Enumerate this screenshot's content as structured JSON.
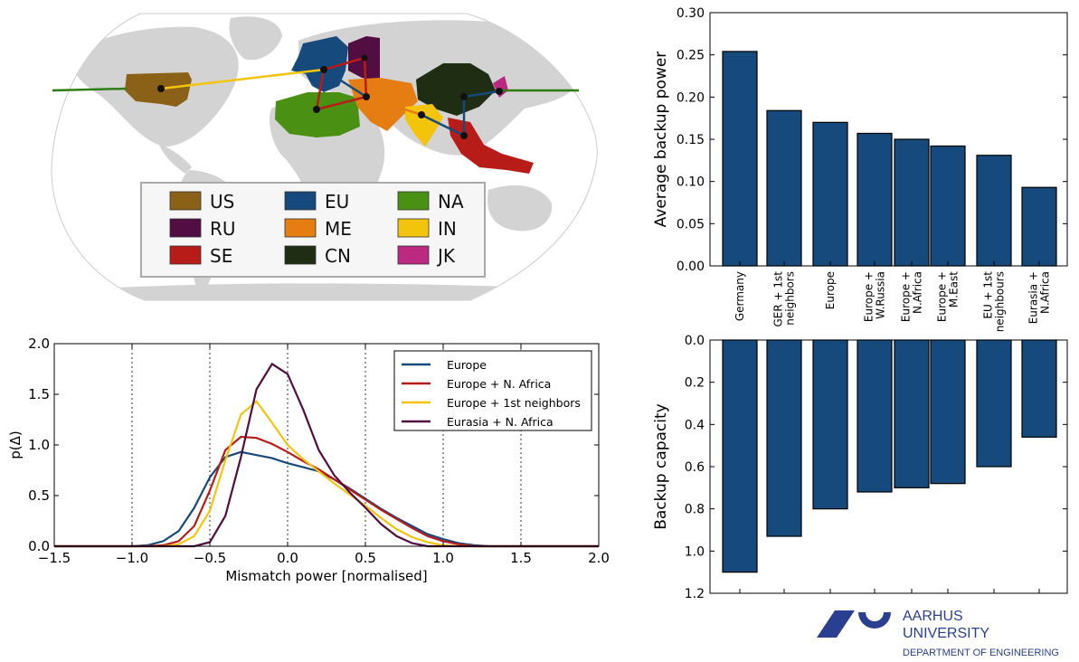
{
  "map": {
    "legend": [
      {
        "code": "US",
        "color": "#8a6117"
      },
      {
        "code": "EU",
        "color": "#174a7c"
      },
      {
        "code": "NA",
        "color": "#4a9012"
      },
      {
        "code": "RU",
        "color": "#520d41"
      },
      {
        "code": "ME",
        "color": "#e57d12"
      },
      {
        "code": "IN",
        "color": "#f2c40c"
      },
      {
        "code": "SE",
        "color": "#b71c18"
      },
      {
        "code": "CN",
        "color": "#1f2e12"
      },
      {
        "code": "JK",
        "color": "#bb2a80"
      }
    ]
  },
  "chart_data": [
    {
      "type": "line",
      "title": "",
      "xlabel": "Mismatch power [normalised]",
      "ylabel": "p(Δ)",
      "xlim": [
        -1.5,
        2.0
      ],
      "ylim": [
        0.0,
        2.0
      ],
      "xticks": [
        "−1.5",
        "−1.0",
        "−0.5",
        "0.0",
        "0.5",
        "1.0",
        "1.5",
        "2.0"
      ],
      "yticks": [
        "0.0",
        "0.5",
        "1.0",
        "1.5",
        "2.0"
      ],
      "vertical_dashed_lines_at": [
        -1.0,
        -0.5,
        0.0,
        0.5,
        1.0,
        1.5
      ],
      "legend_position": "top-right",
      "series": [
        {
          "name": "Europe",
          "color": "#174a7c",
          "x": [
            -1.5,
            -1.0,
            -0.9,
            -0.8,
            -0.7,
            -0.6,
            -0.5,
            -0.4,
            -0.3,
            -0.2,
            -0.1,
            0.0,
            0.1,
            0.2,
            0.3,
            0.4,
            0.5,
            0.6,
            0.7,
            0.8,
            0.9,
            1.0,
            1.1,
            1.2,
            1.3,
            2.0
          ],
          "y": [
            0,
            0,
            0.01,
            0.05,
            0.15,
            0.38,
            0.68,
            0.88,
            0.93,
            0.9,
            0.87,
            0.82,
            0.78,
            0.74,
            0.66,
            0.57,
            0.47,
            0.37,
            0.28,
            0.2,
            0.12,
            0.07,
            0.03,
            0.01,
            0,
            0
          ]
        },
        {
          "name": "Europe + N. Africa",
          "color": "#b71c18",
          "x": [
            -1.5,
            -0.9,
            -0.8,
            -0.7,
            -0.6,
            -0.5,
            -0.4,
            -0.3,
            -0.2,
            -0.1,
            0.0,
            0.1,
            0.2,
            0.3,
            0.4,
            0.5,
            0.6,
            0.7,
            0.8,
            0.9,
            1.0,
            1.1,
            1.2,
            2.0
          ],
          "y": [
            0,
            0,
            0.01,
            0.05,
            0.2,
            0.55,
            0.95,
            1.08,
            1.07,
            1.01,
            0.93,
            0.84,
            0.76,
            0.66,
            0.56,
            0.46,
            0.36,
            0.27,
            0.18,
            0.1,
            0.05,
            0.02,
            0,
            0
          ]
        },
        {
          "name": "Europe + 1st neighbors",
          "color": "#f2c40c",
          "x": [
            -1.5,
            -0.8,
            -0.7,
            -0.6,
            -0.5,
            -0.4,
            -0.3,
            -0.2,
            -0.1,
            0.0,
            0.1,
            0.2,
            0.3,
            0.4,
            0.5,
            0.6,
            0.7,
            0.8,
            0.9,
            1.0,
            1.1,
            2.0
          ],
          "y": [
            0,
            0,
            0.02,
            0.1,
            0.35,
            0.85,
            1.3,
            1.43,
            1.22,
            1.0,
            0.86,
            0.74,
            0.62,
            0.51,
            0.4,
            0.28,
            0.17,
            0.09,
            0.04,
            0.01,
            0,
            0
          ]
        },
        {
          "name": "Eurasia + N. Africa",
          "color": "#520d41",
          "x": [
            -1.5,
            -0.6,
            -0.5,
            -0.4,
            -0.3,
            -0.2,
            -0.1,
            0.0,
            0.1,
            0.2,
            0.3,
            0.4,
            0.5,
            0.6,
            0.7,
            0.8,
            0.9,
            2.0
          ],
          "y": [
            0,
            0,
            0.04,
            0.3,
            0.88,
            1.55,
            1.8,
            1.7,
            1.35,
            0.95,
            0.7,
            0.53,
            0.38,
            0.22,
            0.1,
            0.03,
            0,
            0
          ]
        }
      ]
    },
    {
      "type": "bar",
      "title": "",
      "xlabel": "",
      "ylabel": "Average backup power",
      "ylim": [
        0.0,
        0.3
      ],
      "yticks": [
        "0.00",
        "0.05",
        "0.10",
        "0.15",
        "0.20",
        "0.25",
        "0.30"
      ],
      "categories": [
        [
          "Germany"
        ],
        [
          "GER + 1st",
          "neighbors"
        ],
        [
          "Europe"
        ],
        [
          "Europe +",
          "W.Russia"
        ],
        [
          "Europe +",
          "N.Africa"
        ],
        [
          "Europe +",
          "M.East"
        ],
        [
          "EU + 1st",
          "neighbours"
        ],
        [
          "Eurasia +",
          "N.Africa"
        ]
      ],
      "values": [
        0.254,
        0.184,
        0.17,
        0.157,
        0.15,
        0.142,
        0.131,
        0.093
      ],
      "bar_color": "#174a7c"
    },
    {
      "type": "bar",
      "title": "",
      "xlabel": "",
      "ylabel": "Backup capacity",
      "ylim": [
        0.0,
        1.2
      ],
      "y_inverted": true,
      "yticks": [
        "0.0",
        "0.2",
        "0.4",
        "0.6",
        "0.8",
        "1.0",
        "1.2"
      ],
      "values": [
        1.1,
        0.93,
        0.8,
        0.72,
        0.7,
        0.68,
        0.6,
        0.46
      ],
      "bar_color": "#174a7c"
    }
  ],
  "logo": {
    "line1": "AARHUS",
    "line2": "UNIVERSITY",
    "line3": "DEPARTMENT OF ENGINEERING",
    "color": "#2a3f8f"
  }
}
